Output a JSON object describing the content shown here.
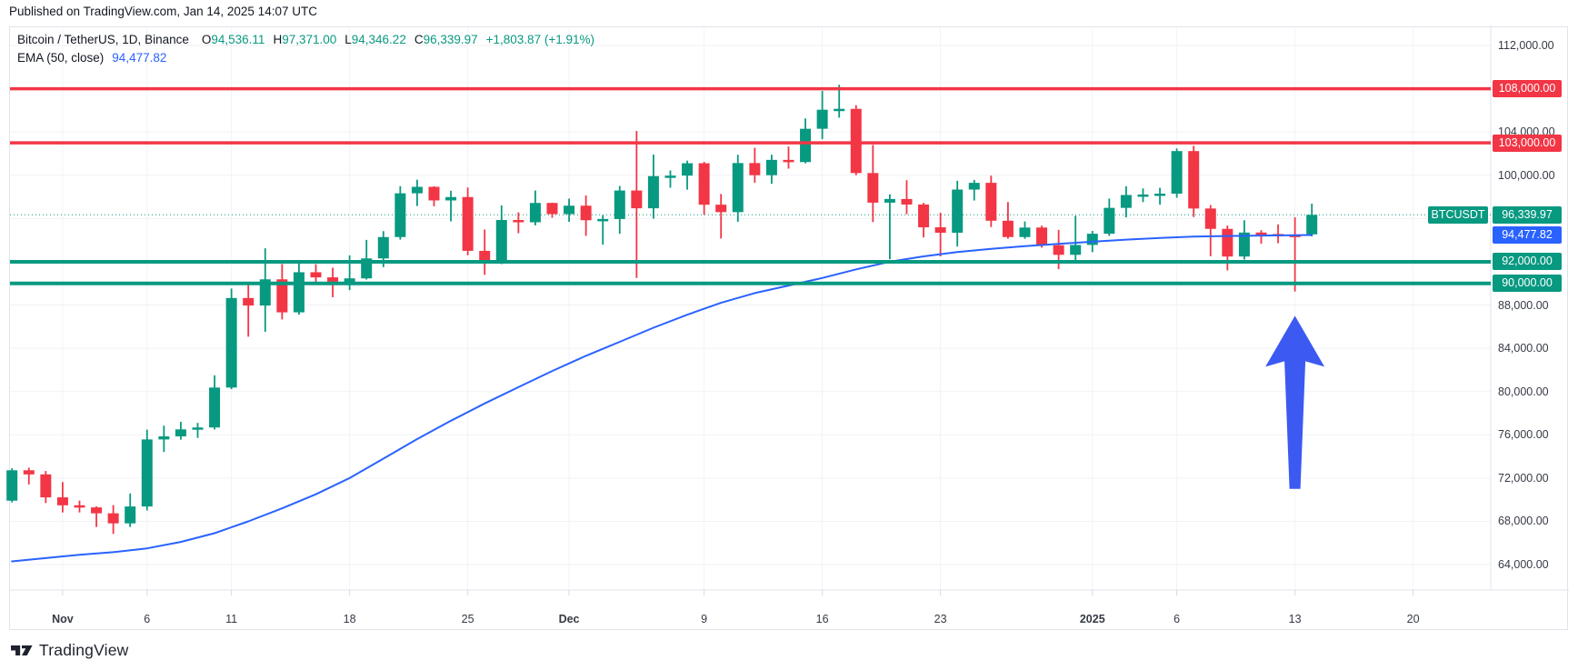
{
  "published_bar": {
    "text": "Published on TradingView.com, Jan 14, 2025 14:07 UTC"
  },
  "legend": {
    "title": "Bitcoin / TetherUS, 1D, Binance",
    "ohlc": {
      "o_label": "O",
      "o": "94,536.11",
      "h_label": "H",
      "h": "97,371.00",
      "l_label": "L",
      "l": "94,346.22",
      "c_label": "C",
      "c": "96,339.97",
      "change": "+1,803.87 (+1.91%)"
    },
    "indicator": {
      "label": "EMA (50, close)",
      "value": "94,477.82"
    }
  },
  "watermark": {
    "brand": "TradingView"
  },
  "colors": {
    "up": "#089981",
    "down": "#f23645",
    "ema": "#2962ff",
    "ema_tag": "#2962ff",
    "arrow": "#3c5af2",
    "level_red": "#f23645",
    "level_green": "#089981",
    "grid": "#f0f2f6",
    "axis_border": "#e0e3eb",
    "axis_text": "#363a45",
    "tick": "#d6d9e0"
  },
  "chart_data": {
    "type": "candlestick",
    "title": "Bitcoin / TetherUS, 1D, Binance",
    "symbol": "BTCUSDT",
    "interval": "1D",
    "exchange": "Binance",
    "ylim": [
      61650,
      113850
    ],
    "grid": true,
    "price_gridlines": [
      64000,
      68000,
      72000,
      76000,
      80000,
      84000,
      88000,
      92000,
      96000,
      100000,
      104000,
      108000,
      112000
    ],
    "y_axis_labels": [
      {
        "price": 112000,
        "label": "112,000.00"
      },
      {
        "price": 104000,
        "label": "104,000.00"
      },
      {
        "price": 100000,
        "label": "100,000.00"
      },
      {
        "price": 88000,
        "label": "88,000.00"
      },
      {
        "price": 84000,
        "label": "84,000.00"
      },
      {
        "price": 80000,
        "label": "80,000.00"
      },
      {
        "price": 76000,
        "label": "76,000.00"
      },
      {
        "price": 72000,
        "label": "72,000.00"
      },
      {
        "price": 68000,
        "label": "68,000.00"
      },
      {
        "price": 64000,
        "label": "64,000.00"
      }
    ],
    "x_axis_ticks": [
      {
        "label": "Nov",
        "day": 3,
        "bold": true
      },
      {
        "label": "6",
        "day": 8,
        "bold": false
      },
      {
        "label": "11",
        "day": 13,
        "bold": false
      },
      {
        "label": "18",
        "day": 20,
        "bold": false
      },
      {
        "label": "25",
        "day": 27,
        "bold": false
      },
      {
        "label": "Dec",
        "day": 33,
        "bold": true
      },
      {
        "label": "9",
        "day": 41,
        "bold": false
      },
      {
        "label": "16",
        "day": 48,
        "bold": false
      },
      {
        "label": "23",
        "day": 55,
        "bold": false
      },
      {
        "label": "2025",
        "day": 64,
        "bold": true
      },
      {
        "label": "6",
        "day": 69,
        "bold": false
      },
      {
        "label": "13",
        "day": 76,
        "bold": false
      },
      {
        "label": "20",
        "day": 83,
        "bold": false
      }
    ],
    "candle_fields": [
      "date",
      "open",
      "high",
      "low",
      "close"
    ],
    "candles": [
      [
        "Oct 29",
        69910,
        72905,
        69750,
        72720
      ],
      [
        "Oct 30",
        72720,
        72959,
        71411,
        72339
      ],
      [
        "Oct 31",
        72339,
        72650,
        69685,
        70215
      ],
      [
        "Nov 1",
        70215,
        71632,
        68820,
        69482
      ],
      [
        "Nov 2",
        69482,
        69914,
        68820,
        69289
      ],
      [
        "Nov 3",
        69289,
        69380,
        67478,
        68741
      ],
      [
        "Nov 4",
        68741,
        69500,
        66835,
        67812
      ],
      [
        "Nov 5",
        67812,
        70577,
        67476,
        69372
      ],
      [
        "Nov 6",
        69372,
        76477,
        69000,
        75571
      ],
      [
        "Nov 7",
        75571,
        76849,
        74416,
        75857
      ],
      [
        "Nov 8",
        75857,
        77199,
        75555,
        76502
      ],
      [
        "Nov 9",
        76502,
        77099,
        75714,
        76677
      ],
      [
        "Nov 10",
        76677,
        81500,
        76492,
        80370
      ],
      [
        "Nov 11",
        80370,
        89530,
        80216,
        88647
      ],
      [
        "Nov 12",
        88647,
        89940,
        85072,
        87952
      ],
      [
        "Nov 13",
        87952,
        93247,
        85524,
        90375
      ],
      [
        "Nov 14",
        90375,
        91790,
        86668,
        87325
      ],
      [
        "Nov 15",
        87325,
        91850,
        87100,
        91032
      ],
      [
        "Nov 16",
        91032,
        91775,
        90068,
        90558
      ],
      [
        "Nov 17",
        90558,
        91449,
        88722,
        89845
      ],
      [
        "Nov 18",
        89845,
        92594,
        89376,
        90464
      ],
      [
        "Nov 19",
        90464,
        94022,
        90356,
        92310
      ],
      [
        "Nov 20",
        92310,
        94831,
        91500,
        94286
      ],
      [
        "Nov 21",
        94286,
        98988,
        94040,
        98331
      ],
      [
        "Nov 22",
        98331,
        99588,
        97153,
        98928
      ],
      [
        "Nov 23",
        98928,
        98985,
        97128,
        97672
      ],
      [
        "Nov 24",
        97672,
        98564,
        95734,
        97983
      ],
      [
        "Nov 25",
        97983,
        98871,
        92600,
        93010
      ],
      [
        "Nov 26",
        93010,
        94980,
        90791,
        91965
      ],
      [
        "Nov 27",
        91965,
        97208,
        91780,
        95863
      ],
      [
        "Nov 28",
        95863,
        96570,
        94640,
        95652
      ],
      [
        "Nov 29",
        95652,
        98590,
        95364,
        97438
      ],
      [
        "Nov 30",
        97438,
        97461,
        96077,
        96405
      ],
      [
        "Dec 1",
        96405,
        97836,
        95690,
        97185
      ],
      [
        "Dec 2",
        97185,
        98130,
        94395,
        95840
      ],
      [
        "Dec 3",
        95840,
        96305,
        93578,
        95952
      ],
      [
        "Dec 4",
        95952,
        99000,
        94587,
        98587
      ],
      [
        "Dec 5",
        98587,
        104088,
        90500,
        96945
      ],
      [
        "Dec 6",
        96945,
        101910,
        95987,
        99920
      ],
      [
        "Dec 7",
        99920,
        100439,
        98844,
        99966
      ],
      [
        "Dec 8",
        99966,
        101351,
        98666,
        101109
      ],
      [
        "Dec 9",
        101109,
        101236,
        96339,
        97276
      ],
      [
        "Dec 10",
        97276,
        98270,
        94150,
        96590
      ],
      [
        "Dec 11",
        96590,
        101888,
        95689,
        101126
      ],
      [
        "Dec 12",
        101126,
        102540,
        99311,
        100004
      ],
      [
        "Dec 13",
        100004,
        101895,
        99210,
        101420
      ],
      [
        "Dec 14",
        101420,
        102650,
        100609,
        101218
      ],
      [
        "Dec 15",
        101218,
        105250,
        101100,
        104298
      ],
      [
        "Dec 16",
        104298,
        107793,
        103333,
        106058
      ],
      [
        "Dec 17",
        106058,
        108364,
        105321,
        106140
      ],
      [
        "Dec 18",
        106140,
        106477,
        100000,
        100203
      ],
      [
        "Dec 19",
        100203,
        102800,
        95672,
        97466
      ],
      [
        "Dec 20",
        97466,
        98233,
        92232,
        97805
      ],
      [
        "Dec 21",
        97805,
        99540,
        96400,
        97291
      ],
      [
        "Dec 22",
        97291,
        97448,
        94250,
        95186
      ],
      [
        "Dec 23",
        95186,
        96538,
        92500,
        94686
      ],
      [
        "Dec 24",
        94686,
        99487,
        93413,
        98676
      ],
      [
        "Dec 25",
        98676,
        99570,
        97664,
        99299
      ],
      [
        "Dec 26",
        99299,
        99963,
        95208,
        95795
      ],
      [
        "Dec 27",
        95795,
        97519,
        94135,
        94286
      ],
      [
        "Dec 28",
        94286,
        95730,
        94121,
        95163
      ],
      [
        "Dec 29",
        95163,
        95340,
        93310,
        93530
      ],
      [
        "Dec 30",
        93530,
        94950,
        91317,
        92643
      ],
      [
        "Dec 31",
        92643,
        96250,
        91971,
        93557
      ],
      [
        "Jan 1",
        93557,
        94850,
        92888,
        94591
      ],
      [
        "Jan 2",
        94591,
        97839,
        94392,
        96984
      ],
      [
        "Jan 3",
        96984,
        98976,
        96100,
        98174
      ],
      [
        "Jan 4",
        98174,
        98778,
        97514,
        98220
      ],
      [
        "Jan 5",
        98220,
        98841,
        97276,
        98300
      ],
      [
        "Jan 6",
        98300,
        102480,
        97920,
        102235
      ],
      [
        "Jan 7",
        102235,
        102724,
        96139,
        96924
      ],
      [
        "Jan 8",
        96924,
        97244,
        92508,
        95043
      ],
      [
        "Jan 9",
        95043,
        95347,
        91203,
        92484
      ],
      [
        "Jan 10",
        92484,
        95836,
        92206,
        94701
      ],
      [
        "Jan 11",
        94701,
        94916,
        93667,
        94566
      ],
      [
        "Jan 12",
        94566,
        95450,
        93712,
        94488
      ],
      [
        "Jan 13",
        94488,
        96100,
        89256,
        94363
      ],
      [
        "Jan 14",
        94536,
        97371,
        94346,
        96340
      ]
    ],
    "ema_series": {
      "name": "EMA (50, close)",
      "last_value": 94477.82,
      "points_day_value": [
        [
          0,
          64300
        ],
        [
          2,
          64600
        ],
        [
          4,
          64900
        ],
        [
          6,
          65150
        ],
        [
          8,
          65500
        ],
        [
          10,
          66100
        ],
        [
          12,
          66900
        ],
        [
          14,
          68000
        ],
        [
          16,
          69200
        ],
        [
          18,
          70500
        ],
        [
          20,
          72000
        ],
        [
          22,
          73800
        ],
        [
          24,
          75600
        ],
        [
          26,
          77300
        ],
        [
          28,
          78900
        ],
        [
          30,
          80400
        ],
        [
          32,
          81900
        ],
        [
          34,
          83300
        ],
        [
          36,
          84600
        ],
        [
          38,
          85900
        ],
        [
          40,
          87100
        ],
        [
          42,
          88200
        ],
        [
          44,
          89100
        ],
        [
          46,
          89800
        ],
        [
          48,
          90500
        ],
        [
          50,
          91300
        ],
        [
          52,
          92000
        ],
        [
          54,
          92500
        ],
        [
          56,
          92900
        ],
        [
          58,
          93200
        ],
        [
          60,
          93450
        ],
        [
          62,
          93650
        ],
        [
          64,
          93850
        ],
        [
          66,
          94050
        ],
        [
          68,
          94200
        ],
        [
          70,
          94320
        ],
        [
          72,
          94380
        ],
        [
          74,
          94420
        ],
        [
          76,
          94455
        ],
        [
          77,
          94478
        ]
      ]
    },
    "levels": [
      {
        "price": 108000,
        "label": "108,000.00",
        "color": "#f23645",
        "width": 3.5
      },
      {
        "price": 103000,
        "label": "103,000.00",
        "color": "#f23645",
        "width": 3.5
      },
      {
        "price": 92000,
        "label": "92,000.00",
        "color": "#089981",
        "width": 4
      },
      {
        "price": 90000,
        "label": "90,000.00",
        "color": "#089981",
        "width": 4
      }
    ],
    "price_line": {
      "price": 96339.97,
      "tag": "BTCUSDT",
      "label": "96,339.97",
      "color": "#089981"
    },
    "ema_tag": {
      "price": 94477.82,
      "label": "94,477.82",
      "color": "#2962ff"
    },
    "arrow": {
      "day": 76,
      "tail_price": 71000,
      "tip_price": 87000,
      "direction": "up",
      "color": "#3c5af2"
    }
  }
}
